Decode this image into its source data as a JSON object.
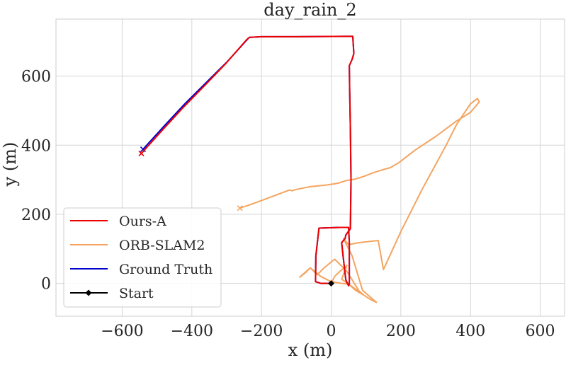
{
  "chart_data": {
    "type": "line",
    "title": "day_rain_2",
    "xlabel": "x (m)",
    "ylabel": "y (m)",
    "xlim": [
      -790,
      670
    ],
    "ylim": [
      -95,
      765
    ],
    "xticks": [
      -600,
      -400,
      -200,
      0,
      200,
      400,
      600
    ],
    "yticks": [
      0,
      200,
      400,
      600
    ],
    "xtick_labels": [
      "−600",
      "−400",
      "−200",
      "0",
      "200",
      "400",
      "600"
    ],
    "ytick_labels": [
      "0",
      "200",
      "400",
      "600"
    ],
    "grid": true,
    "legend_position": "lower-left",
    "legend": [
      {
        "label": "Ours-A",
        "color": "#ee0000",
        "marker": "line"
      },
      {
        "label": "ORB-SLAM2",
        "color": "#f4a460",
        "marker": "line"
      },
      {
        "label": "Ground Truth",
        "color": "#0000cc",
        "marker": "line"
      },
      {
        "label": "Start",
        "color": "#000000",
        "marker": "diamond"
      }
    ],
    "series": [
      {
        "name": "ORB-SLAM2",
        "color": "#f4a460",
        "end_marker": "x",
        "x": [
          0,
          10,
          25,
          38,
          45,
          30,
          50,
          95,
          80,
          45,
          10,
          -20,
          -40,
          -60,
          -75,
          -90,
          -60,
          -30,
          0,
          30,
          50,
          70,
          95,
          115,
          130,
          90,
          60,
          40,
          35,
          50,
          80,
          135,
          150,
          200,
          260,
          330,
          360,
          400,
          420,
          425,
          400,
          360,
          300,
          240,
          195,
          170,
          145,
          120,
          95,
          70,
          45,
          20,
          -10,
          -60,
          -100,
          -112,
          -120,
          -160,
          -200,
          -240,
          -262
        ],
        "y": [
          0,
          20,
          35,
          45,
          52,
          12,
          -2,
          -35,
          -22,
          35,
          70,
          45,
          25,
          45,
          30,
          18,
          45,
          20,
          5,
          0,
          -2,
          -20,
          -35,
          -48,
          -55,
          -20,
          80,
          120,
          130,
          112,
          118,
          124,
          40,
          150,
          270,
          400,
          460,
          520,
          535,
          525,
          495,
          470,
          425,
          385,
          350,
          335,
          328,
          320,
          310,
          302,
          298,
          290,
          285,
          280,
          272,
          268,
          270,
          255,
          240,
          225,
          218
        ]
      },
      {
        "name": "Ground Truth",
        "color": "#0000cc",
        "end_marker": "x",
        "x": [
          0,
          -30,
          -45,
          -44,
          -35,
          25,
          50,
          52,
          52,
          50,
          42,
          35,
          30,
          40,
          42,
          55,
          57,
          55,
          53,
          52,
          60,
          65,
          62,
          40,
          -100,
          -200,
          -235,
          -240,
          -300,
          -360,
          -420,
          -480,
          -540
        ],
        "y": [
          0,
          0,
          5,
          80,
          160,
          162,
          162,
          120,
          0,
          -7,
          10,
          72,
          118,
          130,
          140,
          158,
          300,
          450,
          560,
          630,
          648,
          665,
          715,
          715,
          714,
          714,
          712,
          707,
          640,
          580,
          520,
          455,
          388
        ]
      },
      {
        "name": "Ours-A",
        "color": "#ee0000",
        "end_marker": "x",
        "x": [
          0,
          -30,
          -45,
          -44,
          -35,
          25,
          50,
          52,
          52,
          50,
          42,
          35,
          30,
          40,
          42,
          55,
          57,
          55,
          53,
          52,
          60,
          65,
          62,
          40,
          -100,
          -200,
          -235,
          -242,
          -302,
          -362,
          -424,
          -486,
          -545
        ],
        "y": [
          0,
          0,
          5,
          80,
          160,
          162,
          162,
          120,
          0,
          -7,
          10,
          72,
          118,
          130,
          140,
          158,
          300,
          450,
          560,
          630,
          648,
          665,
          715,
          715,
          714,
          714,
          712,
          706,
          637,
          574,
          510,
          442,
          376
        ]
      }
    ],
    "start_point": {
      "name": "Start",
      "x": 0,
      "y": 0,
      "color": "#000000"
    }
  }
}
